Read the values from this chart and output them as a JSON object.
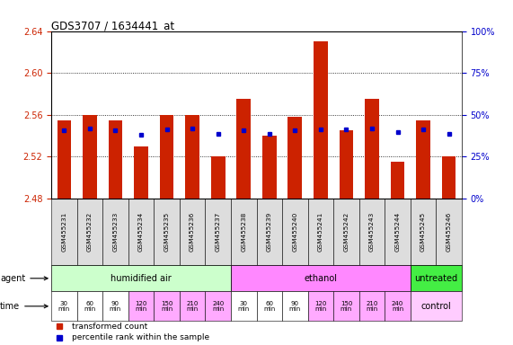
{
  "title": "GDS3707 / 1634441_at",
  "samples": [
    "GSM455231",
    "GSM455232",
    "GSM455233",
    "GSM455234",
    "GSM455235",
    "GSM455236",
    "GSM455237",
    "GSM455238",
    "GSM455239",
    "GSM455240",
    "GSM455241",
    "GSM455242",
    "GSM455243",
    "GSM455244",
    "GSM455245",
    "GSM455246"
  ],
  "red_values": [
    2.555,
    2.56,
    2.555,
    2.53,
    2.56,
    2.56,
    2.52,
    2.575,
    2.54,
    2.558,
    2.63,
    2.545,
    2.575,
    2.515,
    2.555,
    2.52
  ],
  "blue_values": [
    2.545,
    2.547,
    2.545,
    2.541,
    2.546,
    2.547,
    2.542,
    2.545,
    2.542,
    2.545,
    2.546,
    2.546,
    2.547,
    2.543,
    2.546,
    2.542
  ],
  "ymin": 2.48,
  "ymax": 2.64,
  "yticks_left": [
    2.48,
    2.52,
    2.56,
    2.6,
    2.64
  ],
  "yticks_right_pct": [
    0,
    25,
    50,
    75,
    100
  ],
  "yticks_right_labels": [
    "0%",
    "25%",
    "50%",
    "75%",
    "100%"
  ],
  "gridlines": [
    2.52,
    2.56,
    2.6
  ],
  "bar_color": "#cc2200",
  "blue_color": "#0000cc",
  "left_tick_color": "#cc2200",
  "right_tick_color": "#0000cc",
  "agent_defs": [
    {
      "start": 0,
      "end": 6,
      "color": "#ccffcc",
      "label": "humidified air"
    },
    {
      "start": 7,
      "end": 13,
      "color": "#ff88ff",
      "label": "ethanol"
    },
    {
      "start": 14,
      "end": 15,
      "color": "#44ee44",
      "label": "untreated"
    }
  ],
  "time_labels": [
    "30\nmin",
    "60\nmin",
    "90\nmin",
    "120\nmin",
    "150\nmin",
    "210\nmin",
    "240\nmin",
    "30\nmin",
    "60\nmin",
    "90\nmin",
    "120\nmin",
    "150\nmin",
    "210\nmin",
    "240\nmin"
  ],
  "time_colors": [
    "#ffffff",
    "#ffffff",
    "#ffffff",
    "#ffaaff",
    "#ffaaff",
    "#ffaaff",
    "#ffaaff",
    "#ffffff",
    "#ffffff",
    "#ffffff",
    "#ffaaff",
    "#ffaaff",
    "#ffaaff",
    "#ffaaff"
  ],
  "control_color": "#ffccff",
  "sample_box_color": "#dddddd",
  "legend_red_label": "transformed count",
  "legend_blue_label": "percentile rank within the sample"
}
